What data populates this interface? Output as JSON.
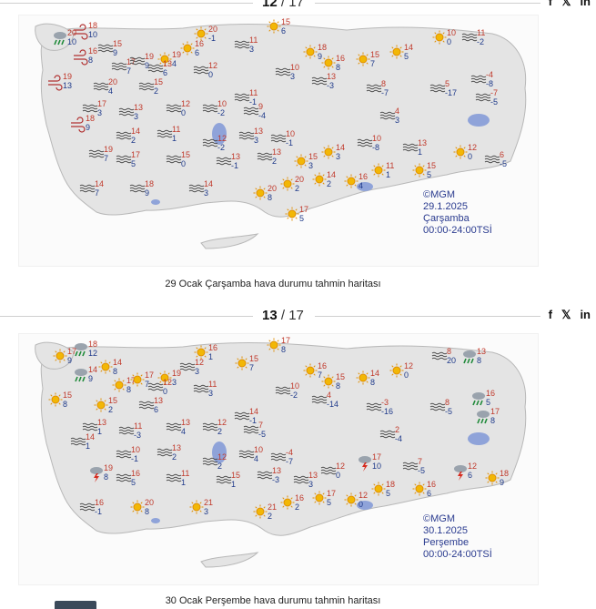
{
  "slides": [
    {
      "counter_current": "12",
      "counter_total": "/ 17",
      "stamp": {
        "source": "©MGM",
        "date": "29.1.2025",
        "day": "Çarşamba",
        "hours": "00:00-24:00TSİ"
      },
      "caption": "29 Ocak Çarşamba hava durumu tahmin haritası",
      "cities": [
        {
          "icon": "windy",
          "max": "18",
          "min": "10"
        },
        {
          "icon": "rain",
          "max": "20",
          "min": "10"
        },
        {
          "icon": "windy",
          "max": "16",
          "min": "8"
        },
        {
          "icon": "fog",
          "max": "15",
          "min": "9"
        },
        {
          "icon": "fog",
          "max": "17",
          "min": "7"
        },
        {
          "icon": "fog",
          "max": "19",
          "min": "9"
        },
        {
          "icon": "sun",
          "max": "19",
          "min": "4"
        },
        {
          "icon": "sun",
          "max": "20",
          "min": "-1"
        },
        {
          "icon": "sun",
          "max": "16",
          "min": "6"
        },
        {
          "icon": "fog",
          "max": "11",
          "min": "3"
        },
        {
          "icon": "sun",
          "max": "15",
          "min": "6"
        },
        {
          "icon": "sun",
          "max": "18",
          "min": "9"
        },
        {
          "icon": "sun",
          "max": "16",
          "min": "8"
        },
        {
          "icon": "sun",
          "max": "15",
          "min": "7"
        },
        {
          "icon": "sun",
          "max": "14",
          "min": "5"
        },
        {
          "icon": "sun",
          "max": "10",
          "min": "0"
        },
        {
          "icon": "fog",
          "max": "11",
          "min": "-2"
        },
        {
          "icon": "windy",
          "max": "19",
          "min": "13"
        },
        {
          "icon": "fog",
          "max": "20",
          "min": "4"
        },
        {
          "icon": "fog",
          "max": "15",
          "min": "2"
        },
        {
          "icon": "fog",
          "max": "13",
          "min": "6"
        },
        {
          "icon": "fog",
          "max": "12",
          "min": "0"
        },
        {
          "icon": "fog",
          "max": "11",
          "min": "-1"
        },
        {
          "icon": "fog",
          "max": "10",
          "min": "3"
        },
        {
          "icon": "fog",
          "max": "13",
          "min": "-3"
        },
        {
          "icon": "fog",
          "max": "8",
          "min": "-7"
        },
        {
          "icon": "fog",
          "max": "5",
          "min": "-17"
        },
        {
          "icon": "fog",
          "max": "-4",
          "min": "-8"
        },
        {
          "icon": "fog",
          "max": "17",
          "min": "3"
        },
        {
          "icon": "fog",
          "max": "13",
          "min": "3"
        },
        {
          "icon": "fog",
          "max": "12",
          "min": "0"
        },
        {
          "icon": "fog",
          "max": "10",
          "min": "-2"
        },
        {
          "icon": "fog",
          "max": "9",
          "min": "-4"
        },
        {
          "icon": "fog",
          "max": "4",
          "min": "3"
        },
        {
          "icon": "fog",
          "max": "-7",
          "min": "-5"
        },
        {
          "icon": "windy",
          "max": "18",
          "min": "9"
        },
        {
          "icon": "fog",
          "max": "14",
          "min": "2"
        },
        {
          "icon": "fog",
          "max": "11",
          "min": "1"
        },
        {
          "icon": "fog",
          "max": "12",
          "min": "-2"
        },
        {
          "icon": "fog",
          "max": "13",
          "min": "3"
        },
        {
          "icon": "fog",
          "max": "10",
          "min": "-1"
        },
        {
          "icon": "fog",
          "max": "10",
          "min": "-8"
        },
        {
          "icon": "fog",
          "max": "19",
          "min": "7"
        },
        {
          "icon": "fog",
          "max": "17",
          "min": "5"
        },
        {
          "icon": "fog",
          "max": "15",
          "min": "0"
        },
        {
          "icon": "fog",
          "max": "13",
          "min": "-1"
        },
        {
          "icon": "fog",
          "max": "13",
          "min": "2"
        },
        {
          "icon": "sun",
          "max": "15",
          "min": "3"
        },
        {
          "icon": "sun",
          "max": "14",
          "min": "3"
        },
        {
          "icon": "fog",
          "max": "13",
          "min": "1"
        },
        {
          "icon": "sun",
          "max": "12",
          "min": "0"
        },
        {
          "icon": "fog",
          "max": "6",
          "min": "-5"
        },
        {
          "icon": "fog",
          "max": "14",
          "min": "7"
        },
        {
          "icon": "fog",
          "max": "18",
          "min": "9"
        },
        {
          "icon": "fog",
          "max": "14",
          "min": "3"
        },
        {
          "icon": "sun",
          "max": "20",
          "min": "8"
        },
        {
          "icon": "sun",
          "max": "20",
          "min": "2"
        },
        {
          "icon": "sun",
          "max": "14",
          "min": "2"
        },
        {
          "icon": "sun",
          "max": "16",
          "min": "4"
        },
        {
          "icon": "sun",
          "max": "11",
          "min": "1"
        },
        {
          "icon": "sun",
          "max": "15",
          "min": "5"
        },
        {
          "icon": "sun",
          "max": "17",
          "min": "5"
        }
      ]
    },
    {
      "counter_current": "13",
      "counter_total": "/ 17",
      "stamp": {
        "source": "©MGM",
        "date": "30.1.2025",
        "day": "Perşembe",
        "hours": "00:00-24:00TSİ"
      },
      "caption": "30 Ocak Perşembe hava durumu tahmin haritası",
      "cities": [
        {
          "icon": "rain",
          "max": "18",
          "min": "12"
        },
        {
          "icon": "sun",
          "max": "17",
          "min": "9"
        },
        {
          "icon": "rain",
          "max": "14",
          "min": "9"
        },
        {
          "icon": "sun",
          "max": "14",
          "min": "8"
        },
        {
          "icon": "sun",
          "max": "17",
          "min": "8"
        },
        {
          "icon": "sun",
          "max": "17",
          "min": "7"
        },
        {
          "icon": "sun",
          "max": "19",
          "min": "3"
        },
        {
          "icon": "sun",
          "max": "16",
          "min": "1"
        },
        {
          "icon": "fog",
          "max": "12",
          "min": "3"
        },
        {
          "icon": "sun",
          "max": "15",
          "min": "7"
        },
        {
          "icon": "sun",
          "max": "17",
          "min": "8"
        },
        {
          "icon": "sun",
          "max": "16",
          "min": "7"
        },
        {
          "icon": "sun",
          "max": "15",
          "min": "8"
        },
        {
          "icon": "sun",
          "max": "14",
          "min": "8"
        },
        {
          "icon": "sun",
          "max": "12",
          "min": "0"
        },
        {
          "icon": "fog",
          "max": "8",
          "min": "20"
        },
        {
          "icon": "rain",
          "max": "13",
          "min": "8"
        },
        {
          "icon": "sun",
          "max": "15",
          "min": "8"
        },
        {
          "icon": "sun",
          "max": "15",
          "min": "2"
        },
        {
          "icon": "fog",
          "max": "13",
          "min": "6"
        },
        {
          "icon": "fog",
          "max": "12",
          "min": "0"
        },
        {
          "icon": "fog",
          "max": "11",
          "min": "3"
        },
        {
          "icon": "fog",
          "max": "14",
          "min": "-1"
        },
        {
          "icon": "fog",
          "max": "10",
          "min": "-2"
        },
        {
          "icon": "fog",
          "max": "4",
          "min": "-14"
        },
        {
          "icon": "fog",
          "max": "-3",
          "min": "-16"
        },
        {
          "icon": "fog",
          "max": "8",
          "min": "-5"
        },
        {
          "icon": "rain",
          "max": "16",
          "min": "5"
        },
        {
          "icon": "fog",
          "max": "13",
          "min": "1"
        },
        {
          "icon": "fog",
          "max": "11",
          "min": "-3"
        },
        {
          "icon": "fog",
          "max": "13",
          "min": "4"
        },
        {
          "icon": "fog",
          "max": "12",
          "min": "2"
        },
        {
          "icon": "fog",
          "max": "7",
          "min": "-5"
        },
        {
          "icon": "fog",
          "max": "2",
          "min": "-4"
        },
        {
          "icon": "rain",
          "max": "17",
          "min": "8"
        },
        {
          "icon": "fog",
          "max": "14",
          "min": "1"
        },
        {
          "icon": "fog",
          "max": "10",
          "min": "-1"
        },
        {
          "icon": "fog",
          "max": "13",
          "min": "2"
        },
        {
          "icon": "fog",
          "max": "12",
          "min": "2"
        },
        {
          "icon": "fog",
          "max": "10",
          "min": "4"
        },
        {
          "icon": "fog",
          "max": "-4",
          "min": "-7"
        },
        {
          "icon": "storm",
          "max": "17",
          "min": "10"
        },
        {
          "icon": "storm",
          "max": "19",
          "min": "8"
        },
        {
          "icon": "fog",
          "max": "16",
          "min": "5"
        },
        {
          "icon": "fog",
          "max": "11",
          "min": "1"
        },
        {
          "icon": "fog",
          "max": "15",
          "min": "1"
        },
        {
          "icon": "fog",
          "max": "13",
          "min": "-3"
        },
        {
          "icon": "fog",
          "max": "13",
          "min": "3"
        },
        {
          "icon": "fog",
          "max": "12",
          "min": "0"
        },
        {
          "icon": "fog",
          "max": "7",
          "min": "-5"
        },
        {
          "icon": "storm",
          "max": "12",
          "min": "6"
        },
        {
          "icon": "sun",
          "max": "18",
          "min": "9"
        },
        {
          "icon": "fog",
          "max": "16",
          "min": "-1"
        },
        {
          "icon": "sun",
          "max": "20",
          "min": "8"
        },
        {
          "icon": "sun",
          "max": "21",
          "min": "3"
        },
        {
          "icon": "sun",
          "max": "21",
          "min": "2"
        },
        {
          "icon": "sun",
          "max": "16",
          "min": "2"
        },
        {
          "icon": "sun",
          "max": "17",
          "min": "5"
        },
        {
          "icon": "sun",
          "max": "12",
          "min": "0"
        },
        {
          "icon": "sun",
          "max": "18",
          "min": "5"
        },
        {
          "icon": "sun",
          "max": "16",
          "min": "6"
        }
      ]
    }
  ],
  "share": {
    "facebook": "f",
    "x": "𝕏",
    "linkedin": "in"
  },
  "colors": {
    "max": "#c0392b",
    "min": "#1f3a8a",
    "land": "#e4e4e4",
    "lake": "#8fa3d9",
    "sea_outline": "#c9c9c9"
  }
}
